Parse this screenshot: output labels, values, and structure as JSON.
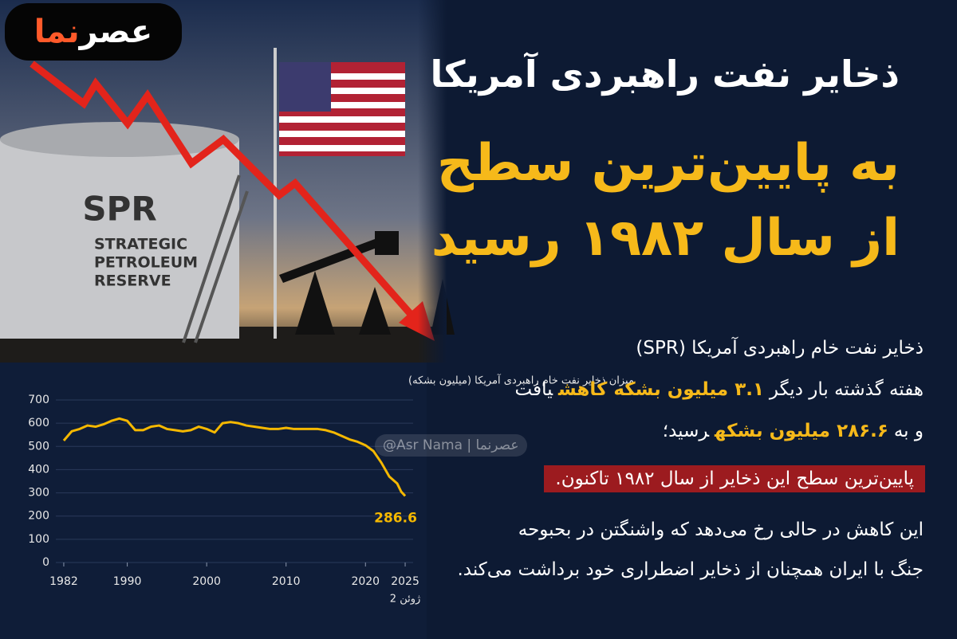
{
  "logo": {
    "part1": "عصر",
    "part2": "نما"
  },
  "headline": {
    "line1": "ذخایر نفت راهبردی آمریکا",
    "line2": "به پایین‌ترین سطح",
    "line3": "از سال ۱۹۸۲ رسید"
  },
  "image_labels": {
    "tank_code": "SPR",
    "tank_name": [
      "STRATEGIC",
      "PETROLEUM",
      "RESERVE"
    ]
  },
  "watermark": "@Asr Nama | عصرنما",
  "body": {
    "line1": [
      "ذخایر نفت خام راهبردی آمریکا (SPR)"
    ],
    "line2": [
      "هفته گذشته بار دیگر",
      "۳.۱ میلیون بشکه کاهش",
      "یافت"
    ],
    "line3": [
      "و به",
      "۲۸۶.۶ میلیون بشکه",
      "رسید؛"
    ],
    "highlight": "پایین‌ترین سطح این ذخایر از سال ۱۹۸۲ تاکنون.",
    "line5": "این کاهش در حالی رخ می‌دهد که واشنگتن در بحبوحه",
    "line6": "جنگ با ایران همچنان از ذخایر اضطراری خود برداشت می‌کند."
  },
  "chart_data": {
    "type": "line",
    "title": "میزان ذخایر نفت خام راهبردی آمریکا (میلیون بشکه)",
    "x": [
      1982,
      1983,
      1984,
      1985,
      1986,
      1987,
      1988,
      1989,
      1990,
      1991,
      1992,
      1993,
      1994,
      1995,
      1996,
      1997,
      1998,
      1999,
      2000,
      2001,
      2002,
      2003,
      2004,
      2005,
      2006,
      2007,
      2008,
      2009,
      2010,
      2011,
      2012,
      2013,
      2014,
      2015,
      2016,
      2017,
      2018,
      2019,
      2020,
      2021,
      2022,
      2023,
      2024,
      2024.5,
      2025
    ],
    "series": [
      {
        "name": "SPR",
        "color": "#f5b800",
        "values": [
          525,
          565,
          575,
          590,
          585,
          595,
          610,
          620,
          610,
          570,
          570,
          585,
          590,
          575,
          570,
          565,
          570,
          585,
          575,
          560,
          600,
          605,
          600,
          590,
          585,
          580,
          575,
          575,
          580,
          575,
          575,
          575,
          575,
          570,
          560,
          545,
          530,
          520,
          505,
          480,
          430,
          370,
          340,
          305,
          286.6
        ]
      }
    ],
    "xlim": [
      1981,
      2026
    ],
    "xticks": [
      1982,
      1990,
      2000,
      2010,
      2020,
      2025
    ],
    "x_note": "ژوئن 2",
    "ylim": [
      0,
      700
    ],
    "yticks": [
      0,
      100,
      200,
      300,
      400,
      500,
      600,
      700
    ],
    "grid": true
  }
}
